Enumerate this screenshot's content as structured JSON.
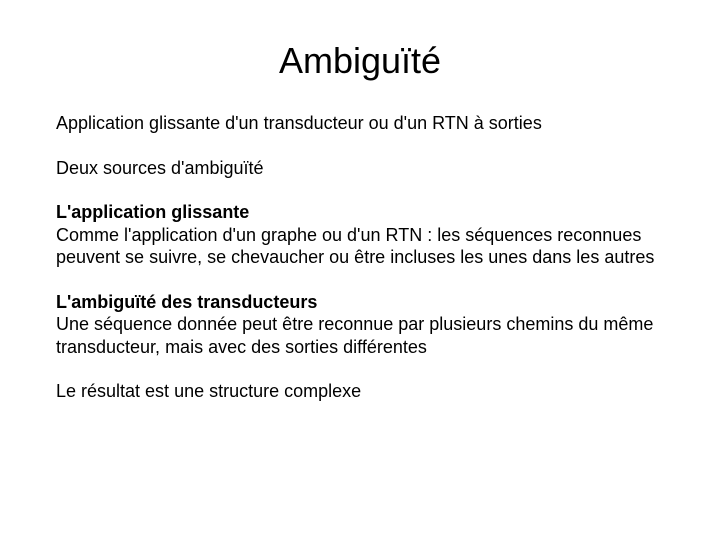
{
  "slide": {
    "title": "Ambiguïté",
    "intro": "Application glissante d'un transducteur ou d'un RTN à sorties",
    "sources": "Deux sources d'ambiguïté",
    "section1": {
      "heading": "L'application glissante",
      "body": "Comme l'application d'un graphe ou d'un RTN : les séquences reconnues peuvent se suivre, se chevaucher ou être incluses les unes dans les autres"
    },
    "section2": {
      "heading": "L'ambiguïté des transducteurs",
      "body": "Une séquence donnée peut être reconnue par plusieurs chemins du même transducteur, mais avec des sorties différentes"
    },
    "closing": "Le résultat est une structure complexe"
  },
  "style": {
    "background_color": "#ffffff",
    "text_color": "#000000",
    "title_fontsize_pt": 27,
    "body_fontsize_pt": 14,
    "font_family": "Arial"
  }
}
